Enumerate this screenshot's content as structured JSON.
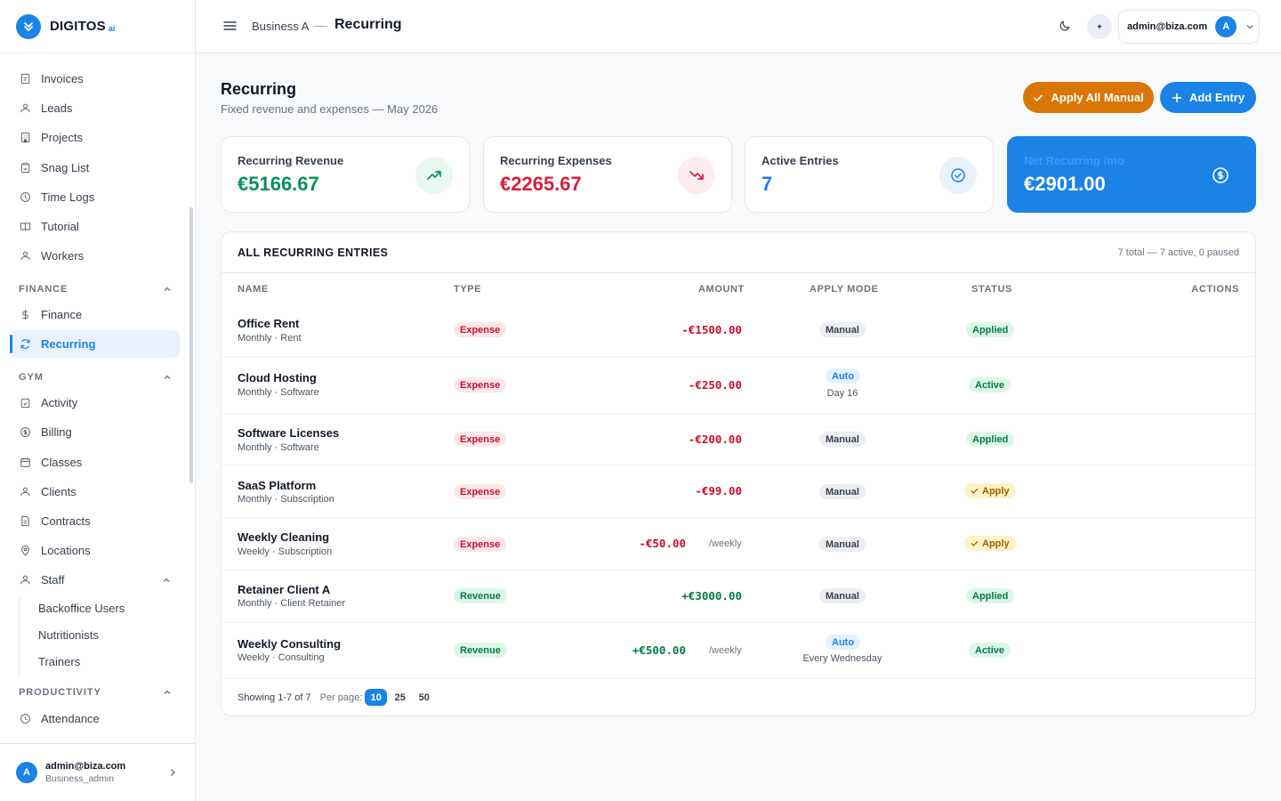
{
  "brand": {
    "name": "DIGITOS",
    "suffix": "ai"
  },
  "sidebar": {
    "items_top": [
      "Invoices",
      "Leads",
      "Projects",
      "Snag List",
      "Time Logs",
      "Tutorial",
      "Workers"
    ],
    "finance_section": "FINANCE",
    "finance_items": [
      "Finance",
      "Recurring"
    ],
    "gym_section": "GYM",
    "gym_items": [
      "Activity",
      "Billing",
      "Classes",
      "Clients",
      "Contracts",
      "Locations",
      "Staff"
    ],
    "staff_sub": [
      "Backoffice Users",
      "Nutritionists",
      "Trainers"
    ],
    "productivity_section": "PRODUCTIVITY",
    "productivity_items": [
      "Attendance"
    ],
    "user": {
      "email": "admin@biza.com",
      "role": "Business_admin",
      "initial": "A"
    }
  },
  "header": {
    "breadcrumb_parent": "Business A",
    "breadcrumb_sep": "—",
    "title": "Recurring",
    "spark": "✦",
    "user_email": "admin@biza.com",
    "user_initial": "A"
  },
  "page": {
    "title": "Recurring",
    "subtitle": "Fixed revenue and expenses — May 2026",
    "apply_all_label": "Apply All Manual",
    "add_entry_label": "Add Entry"
  },
  "cards": [
    {
      "label": "Recurring Revenue",
      "value": "€5166.67",
      "color": "#08905a"
    },
    {
      "label": "Recurring Expenses",
      "value": "€2265.67",
      "color": "#d61f3c"
    },
    {
      "label": "Active Entries",
      "value": "7",
      "color": "#1b82e6"
    },
    {
      "label": "Net Recurring /mo",
      "value": "€2901.00",
      "color": "#ffffff"
    }
  ],
  "table": {
    "title": "ALL RECURRING ENTRIES",
    "summary": "7 total — 7 active, 0 paused",
    "columns": [
      "NAME",
      "TYPE",
      "AMOUNT",
      "APPLY MODE",
      "STATUS",
      "ACTIONS"
    ],
    "rows": [
      {
        "name": "Office Rent",
        "sub": "Monthly · Rent",
        "type": "Expense",
        "amount": "-€1500.00",
        "freq": "",
        "mode": "Manual",
        "mode_sub": "",
        "status": "Applied"
      },
      {
        "name": "Cloud Hosting",
        "sub": "Monthly · Software",
        "type": "Expense",
        "amount": "-€250.00",
        "freq": "",
        "mode": "Auto",
        "mode_sub": "Day 16",
        "status": "Active"
      },
      {
        "name": "Software Licenses",
        "sub": "Monthly · Software",
        "type": "Expense",
        "amount": "-€200.00",
        "freq": "",
        "mode": "Manual",
        "mode_sub": "",
        "status": "Applied"
      },
      {
        "name": "SaaS Platform",
        "sub": "Monthly · Subscription",
        "type": "Expense",
        "amount": "-€99.00",
        "freq": "",
        "mode": "Manual",
        "mode_sub": "",
        "status": "Apply"
      },
      {
        "name": "Weekly Cleaning",
        "sub": "Weekly · Subscription",
        "type": "Expense",
        "amount": "-€50.00",
        "freq": "/weekly",
        "mode": "Manual",
        "mode_sub": "",
        "status": "Apply"
      },
      {
        "name": "Retainer Client A",
        "sub": "Monthly · Client Retainer",
        "type": "Revenue",
        "amount": "+€3000.00",
        "freq": "",
        "mode": "Manual",
        "mode_sub": "",
        "status": "Applied"
      },
      {
        "name": "Weekly Consulting",
        "sub": "Weekly · Consulting",
        "type": "Revenue",
        "amount": "+€500.00",
        "freq": "/weekly",
        "mode": "Auto",
        "mode_sub": "Every Wednesday",
        "status": "Active"
      }
    ],
    "footer": {
      "showing": "Showing 1-7 of 7",
      "per_page_label": "Per page:",
      "per_page_options": [
        "10",
        "25",
        "50"
      ],
      "selected": "10"
    }
  }
}
